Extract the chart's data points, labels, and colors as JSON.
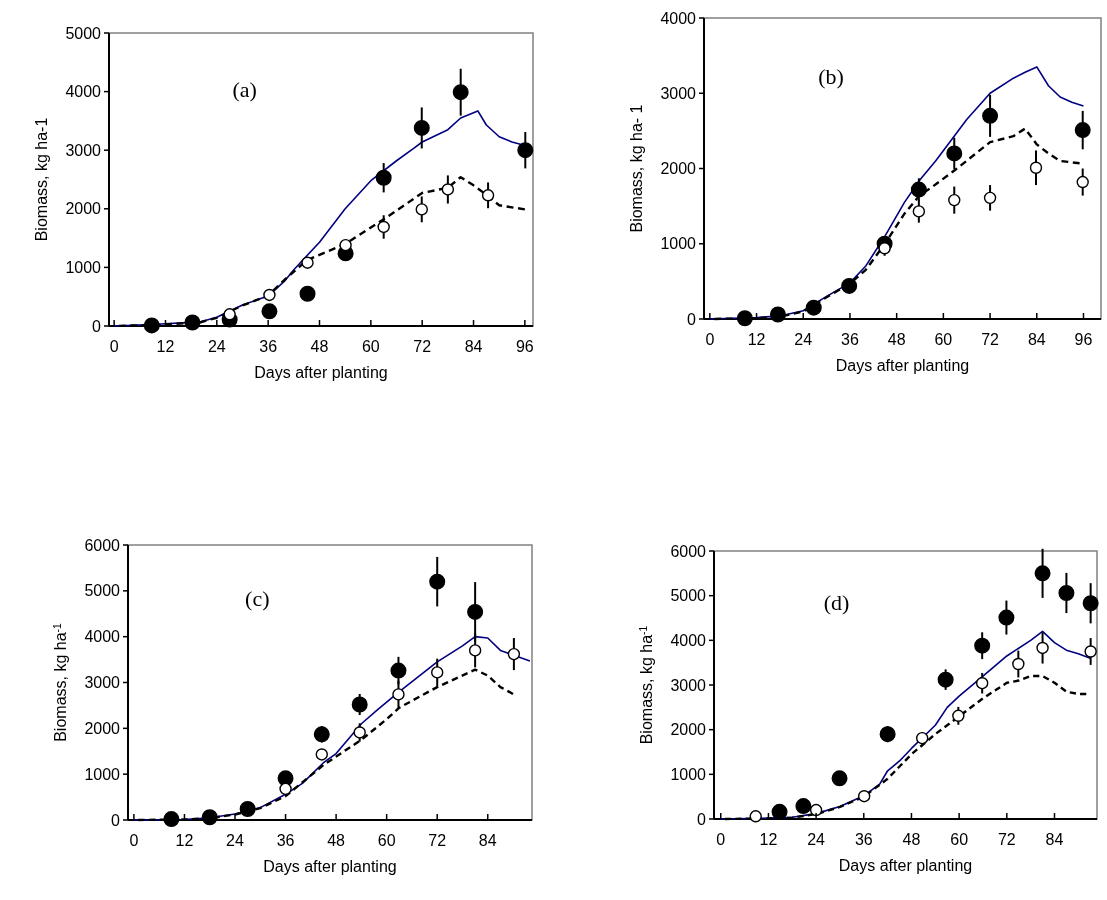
{
  "chart_data": [
    {
      "type": "line",
      "title": "(a)",
      "xlabel": "Days after planting",
      "ylabel": "Biomass, kg ha-1",
      "xlim": [
        -1.2,
        97.9
      ],
      "xticks": [
        0,
        12,
        24,
        36,
        48,
        60,
        72,
        84,
        96
      ],
      "ylim": [
        0,
        5000
      ],
      "yticks": [
        0,
        1000,
        2000,
        3000,
        4000,
        5000
      ],
      "grid": false,
      "series": [
        {
          "color": "#000080",
          "line_style": "solid",
          "x": [
            0,
            10,
            20,
            24,
            30,
            36,
            40,
            42,
            48,
            54,
            57,
            60,
            66,
            70,
            72,
            78,
            81,
            85,
            87,
            90,
            93,
            96
          ],
          "values": [
            0,
            30,
            70,
            150,
            360,
            510,
            780,
            960,
            1430,
            2000,
            2240,
            2480,
            2820,
            3030,
            3140,
            3350,
            3550,
            3670,
            3430,
            3230,
            3140,
            3080
          ]
        },
        {
          "color": "#000000",
          "line_style": "dashed",
          "x": [
            0,
            10,
            20,
            24,
            30,
            36,
            40,
            45,
            54,
            63,
            72,
            78,
            81,
            84,
            87,
            90,
            96
          ],
          "values": [
            0,
            20,
            60,
            140,
            350,
            520,
            800,
            1120,
            1400,
            1820,
            2270,
            2360,
            2540,
            2400,
            2240,
            2060,
            1990
          ]
        },
        {
          "type": "scatter",
          "color": "#000000",
          "marker": "circle",
          "x": [
            8.8,
            18.3,
            27,
            36.3,
            45.2,
            54.1,
            63,
            71.9,
            81,
            96.1
          ],
          "values": [
            10,
            60,
            110,
            250,
            550,
            1240,
            2530,
            3380,
            3990,
            3000
          ],
          "errors": [
            null,
            null,
            null,
            null,
            null,
            100,
            250,
            350,
            400,
            310
          ]
        },
        {
          "type": "scatter",
          "color": "#ffffff",
          "marker": "circle",
          "x": [
            27,
            36.3,
            45.2,
            54.1,
            63,
            71.9,
            78,
            87.4
          ],
          "values": [
            200,
            530,
            1080,
            1380,
            1690,
            1990,
            2330,
            2230
          ],
          "errors": [
            null,
            null,
            60,
            90,
            200,
            220,
            240,
            220
          ]
        }
      ]
    },
    {
      "type": "line",
      "title": "(b)",
      "xlabel": "Days after planting",
      "ylabel": "Biomass, kg ha- 1",
      "xlim": [
        -1.5,
        100.5
      ],
      "xticks": [
        0,
        12,
        24,
        36,
        48,
        60,
        72,
        84,
        96
      ],
      "ylim": [
        0,
        4000
      ],
      "yticks": [
        0,
        1000,
        2000,
        3000,
        4000
      ],
      "grid": false,
      "series": [
        {
          "color": "#000080",
          "line_style": "solid",
          "x": [
            0,
            12,
            18,
            24,
            30,
            36,
            40,
            45,
            50,
            54,
            58,
            66,
            72,
            78,
            81,
            84,
            87,
            90,
            93,
            96
          ],
          "values": [
            0,
            20,
            40,
            110,
            300,
            480,
            700,
            1100,
            1550,
            1850,
            2100,
            2650,
            3000,
            3200,
            3280,
            3350,
            3100,
            2950,
            2880,
            2830
          ]
        },
        {
          "color": "#000000",
          "line_style": "dashed",
          "x": [
            0,
            12,
            18,
            24,
            30,
            36,
            40,
            45,
            50,
            54,
            57,
            63,
            72,
            78,
            81,
            84,
            87,
            90,
            95
          ],
          "values": [
            0,
            10,
            30,
            100,
            290,
            470,
            650,
            1000,
            1400,
            1650,
            1750,
            1980,
            2350,
            2430,
            2530,
            2320,
            2200,
            2100,
            2070
          ]
        },
        {
          "type": "scatter",
          "color": "#000000",
          "marker": "circle",
          "x": [
            9,
            17.5,
            26.7,
            35.8,
            44.9,
            53.7,
            62.8,
            72,
            95.8
          ],
          "values": [
            10,
            60,
            150,
            440,
            1000,
            1720,
            2200,
            2700,
            2510
          ],
          "errors": [
            null,
            null,
            null,
            null,
            null,
            150,
            210,
            280,
            255
          ]
        },
        {
          "type": "scatter",
          "color": "#ffffff",
          "marker": "circle",
          "x": [
            44.9,
            53.7,
            62.8,
            72,
            83.8,
            95.8
          ],
          "values": [
            940,
            1430,
            1580,
            1610,
            2010,
            1820
          ],
          "errors": [
            100,
            150,
            180,
            170,
            230,
            180
          ]
        }
      ]
    },
    {
      "type": "line",
      "title": "(c)",
      "xlabel": "Days after planting",
      "ylabel": "Biomass, kg ha$^{-1}$",
      "xlim": [
        -1.4,
        94.5
      ],
      "xticks": [
        0,
        12,
        24,
        36,
        48,
        60,
        72,
        84
      ],
      "ylim": [
        0,
        6000
      ],
      "yticks": [
        0,
        1000,
        2000,
        3000,
        4000,
        5000,
        6000
      ],
      "grid": false,
      "series": [
        {
          "color": "#000080",
          "line_style": "solid",
          "x": [
            0,
            12,
            18,
            24,
            30,
            36,
            40,
            45,
            48,
            54,
            58,
            63,
            72,
            78,
            81,
            84,
            87,
            90,
            94
          ],
          "values": [
            0,
            10,
            50,
            130,
            270,
            560,
            800,
            1250,
            1450,
            2100,
            2420,
            2800,
            3450,
            3800,
            4000,
            3970,
            3700,
            3600,
            3470
          ]
        },
        {
          "color": "#000000",
          "line_style": "dashed",
          "x": [
            0,
            12,
            18,
            24,
            30,
            36,
            45,
            54,
            60,
            63,
            72,
            81,
            84,
            87,
            90
          ],
          "values": [
            0,
            10,
            40,
            120,
            260,
            520,
            1200,
            1750,
            2200,
            2450,
            2900,
            3280,
            3150,
            2900,
            2750
          ]
        },
        {
          "type": "scatter",
          "color": "#000000",
          "marker": "circle",
          "x": [
            8.9,
            18,
            27,
            36,
            44.6,
            53.6,
            62.8,
            72,
            81
          ],
          "values": [
            20,
            60,
            240,
            910,
            1870,
            2520,
            3260,
            5200,
            4540
          ],
          "errors": [
            null,
            null,
            null,
            null,
            180,
            230,
            300,
            540,
            650
          ]
        },
        {
          "type": "scatter",
          "color": "#ffffff",
          "marker": "circle",
          "x": [
            36,
            44.6,
            53.6,
            62.8,
            72,
            81,
            90.2
          ],
          "values": [
            680,
            1430,
            1910,
            2740,
            3220,
            3700,
            3620
          ],
          "errors": [
            null,
            null,
            200,
            300,
            300,
            370,
            350
          ]
        }
      ]
    },
    {
      "type": "line",
      "title": "(d)",
      "xlabel": "Days after planting",
      "ylabel": "Biomass, kg ha$^{-1}$",
      "xlim": [
        -1.7,
        94.7
      ],
      "xticks": [
        0,
        12,
        24,
        36,
        48,
        60,
        72,
        84
      ],
      "ylim": [
        0,
        6000
      ],
      "yticks": [
        0,
        1000,
        2000,
        3000,
        4000,
        5000,
        6000
      ],
      "grid": false,
      "series": [
        {
          "color": "#000080",
          "line_style": "solid",
          "x": [
            0,
            12,
            18,
            24,
            30,
            36,
            40,
            42,
            45,
            48,
            54,
            57,
            60,
            66,
            72,
            78,
            81,
            84,
            87,
            90,
            93
          ],
          "values": [
            0,
            20,
            40,
            120,
            280,
            520,
            780,
            1080,
            1300,
            1580,
            2100,
            2500,
            2750,
            3200,
            3650,
            4000,
            4200,
            3950,
            3780,
            3700,
            3600
          ]
        },
        {
          "color": "#000000",
          "line_style": "dashed",
          "x": [
            0,
            12,
            18,
            24,
            30,
            36,
            42,
            48,
            54,
            60,
            66,
            72,
            75,
            78,
            81,
            84,
            87,
            90,
            92
          ],
          "values": [
            0,
            10,
            30,
            110,
            270,
            500,
            900,
            1450,
            1900,
            2300,
            2700,
            3050,
            3100,
            3200,
            3200,
            3050,
            2850,
            2800,
            2800
          ]
        },
        {
          "type": "scatter",
          "color": "#000000",
          "marker": "circle",
          "x": [
            14.8,
            20.8,
            29.9,
            42,
            56.6,
            65.8,
            71.9,
            81,
            87,
            93.1
          ],
          "values": [
            160,
            290,
            910,
            1900,
            3120,
            3880,
            4510,
            5500,
            5060,
            4830
          ],
          "errors": [
            null,
            null,
            null,
            180,
            230,
            300,
            380,
            550,
            450,
            450
          ]
        },
        {
          "type": "scatter",
          "color": "#ffffff",
          "marker": "circle",
          "x": [
            8.8,
            24,
            36.1,
            50.7,
            59.8,
            65.8,
            74.9,
            81,
            93.1
          ],
          "values": [
            60,
            200,
            510,
            1810,
            2310,
            3040,
            3470,
            3830,
            3750
          ],
          "errors": [
            null,
            null,
            null,
            130,
            200,
            230,
            300,
            350,
            300
          ]
        }
      ]
    }
  ]
}
